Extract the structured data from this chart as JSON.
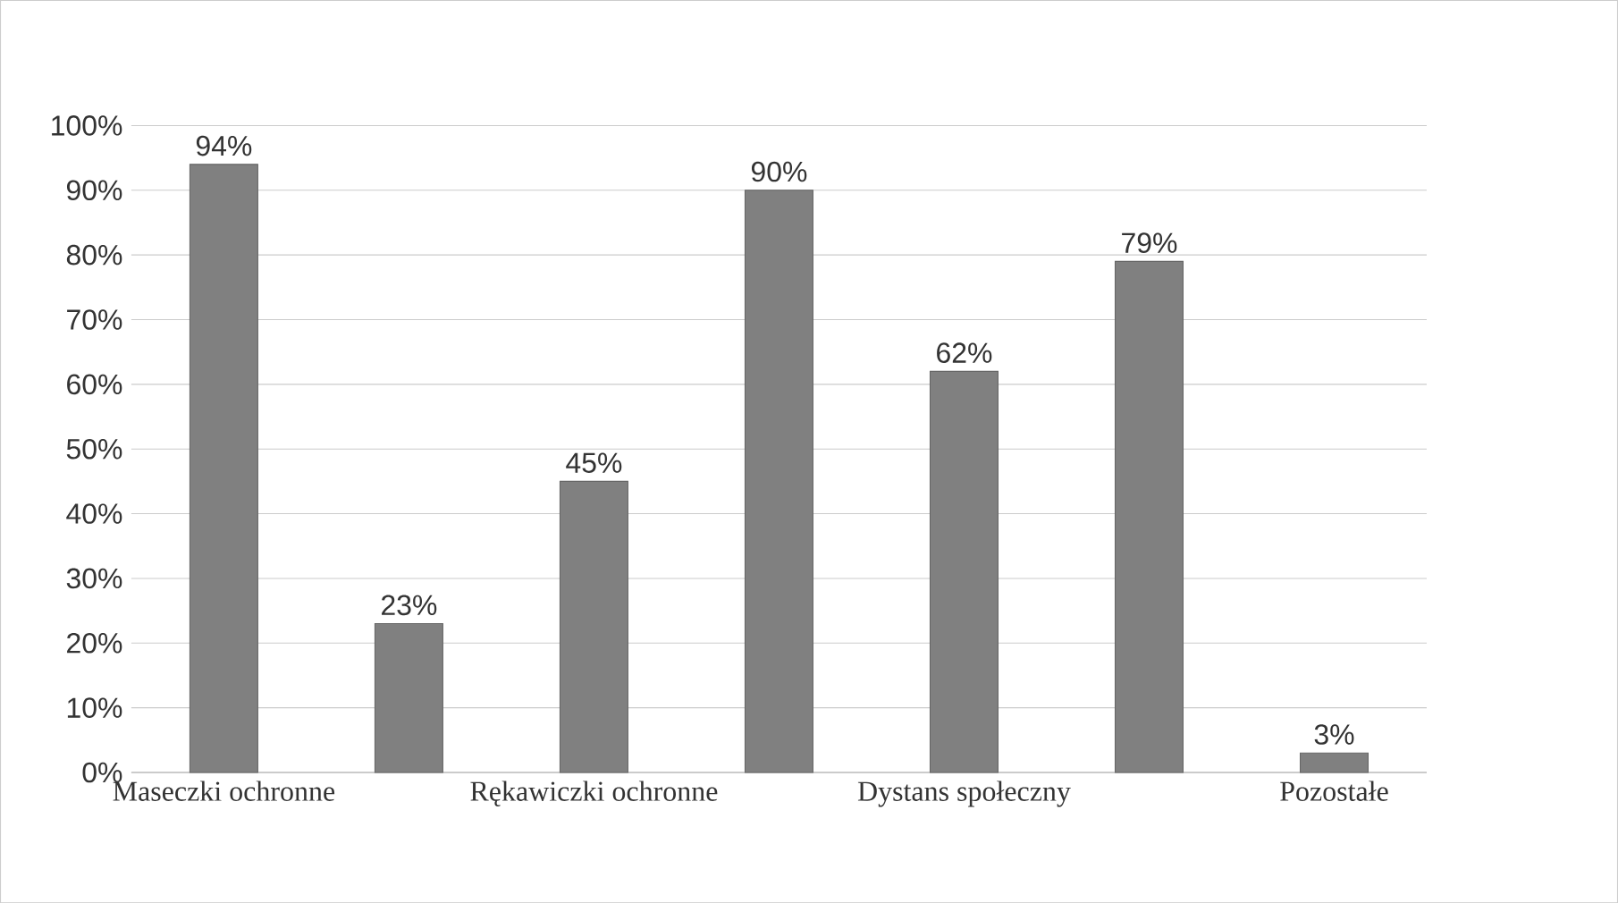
{
  "chart_data": {
    "type": "bar",
    "categories": [
      "Maseczki ochronne",
      null,
      "Rękawiczki ochronne",
      null,
      "Dystans społeczny",
      null,
      "Pozostałe"
    ],
    "values": [
      94,
      23,
      45,
      90,
      62,
      79,
      3
    ],
    "value_labels": [
      "94%",
      "23%",
      "45%",
      "90%",
      "62%",
      "79%",
      "3%"
    ],
    "color": "#808080",
    "ylim": [
      0,
      100
    ],
    "yticks": [
      {
        "value": 0,
        "label": "0%"
      },
      {
        "value": 10,
        "label": "10%"
      },
      {
        "value": 20,
        "label": "20%"
      },
      {
        "value": 30,
        "label": "30%"
      },
      {
        "value": 40,
        "label": "40%"
      },
      {
        "value": 50,
        "label": "50%"
      },
      {
        "value": 60,
        "label": "60%"
      },
      {
        "value": 70,
        "label": "70%"
      },
      {
        "value": 80,
        "label": "80%"
      },
      {
        "value": 90,
        "label": "90%"
      },
      {
        "value": 100,
        "label": "100%"
      }
    ],
    "grid": "y"
  }
}
